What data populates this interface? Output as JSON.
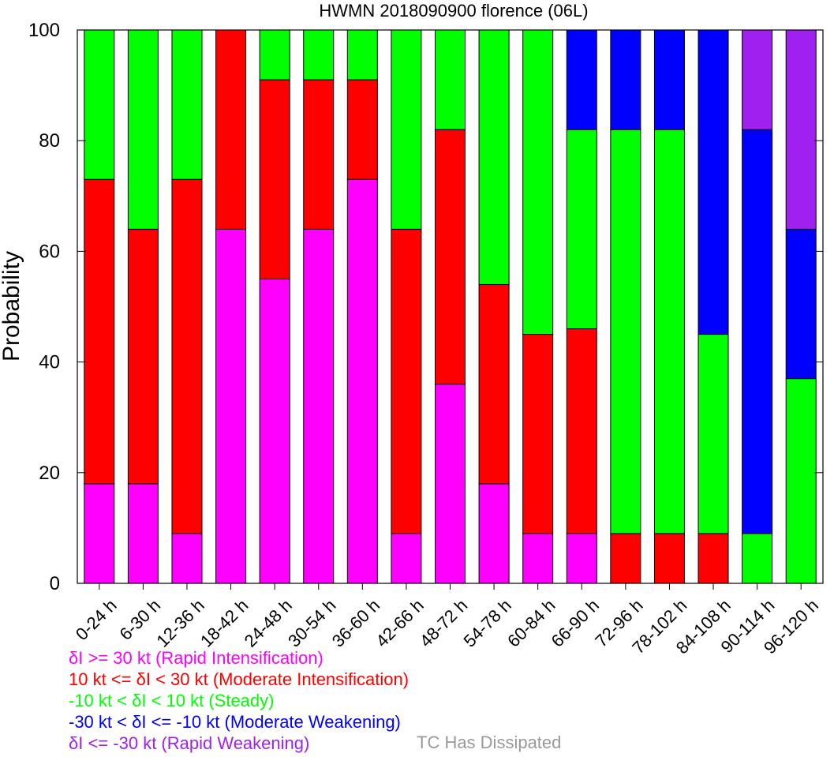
{
  "chart_data": {
    "type": "bar",
    "stacked": true,
    "title": "HWMN 2018090900 florence (06L)",
    "ylabel": "Probability",
    "xlabel": "",
    "ylim": [
      0,
      100
    ],
    "yticks": [
      0,
      20,
      40,
      60,
      80,
      100
    ],
    "categories": [
      "0-24 h",
      "6-30 h",
      "12-36 h",
      "18-42 h",
      "24-48 h",
      "30-54 h",
      "36-60 h",
      "42-66 h",
      "48-72 h",
      "54-78 h",
      "60-84 h",
      "66-90 h",
      "72-96 h",
      "78-102 h",
      "84-108 h",
      "90-114 h",
      "96-120 h"
    ],
    "series": [
      {
        "name": "Rapid Intensification",
        "color": "#ff00ff",
        "values": [
          18,
          18,
          9,
          64,
          55,
          64,
          73,
          9,
          36,
          18,
          9,
          9,
          0,
          0,
          0,
          0,
          0
        ]
      },
      {
        "name": "Moderate Intensification",
        "color": "#ff0000",
        "values": [
          55,
          46,
          64,
          36,
          36,
          27,
          18,
          55,
          46,
          36,
          36,
          37,
          9,
          9,
          9,
          0,
          0
        ]
      },
      {
        "name": "Steady",
        "color": "#00ff00",
        "values": [
          27,
          36,
          27,
          0,
          9,
          9,
          9,
          36,
          18,
          46,
          55,
          36,
          73,
          73,
          36,
          9,
          37
        ]
      },
      {
        "name": "Moderate Weakening",
        "color": "#0000ff",
        "values": [
          0,
          0,
          0,
          0,
          0,
          0,
          0,
          0,
          0,
          0,
          0,
          18,
          18,
          18,
          55,
          73,
          27
        ]
      },
      {
        "name": "Rapid Weakening",
        "color": "#a020f0",
        "values": [
          0,
          0,
          0,
          0,
          0,
          0,
          0,
          0,
          0,
          0,
          0,
          0,
          0,
          0,
          0,
          18,
          36
        ]
      }
    ],
    "legend": [
      {
        "text": "δI >= 30 kt (Rapid Intensification)",
        "color": "#ff00ff"
      },
      {
        "text": "10 kt <= δI < 30 kt (Moderate Intensification)",
        "color": "#ff0000"
      },
      {
        "text": "-10 kt < δI < 10 kt (Steady)",
        "color": "#00ff00"
      },
      {
        "text": "-30 kt < δI <= -10 kt (Moderate Weakening)",
        "color": "#0000ff"
      },
      {
        "text": "δI <= -30 kt (Rapid Weakening)",
        "color": "#a020f0"
      }
    ],
    "dissipated_label": {
      "text": "TC Has Dissipated",
      "color": "#999999"
    },
    "legend_placement": "bottom-left",
    "grid": false
  }
}
